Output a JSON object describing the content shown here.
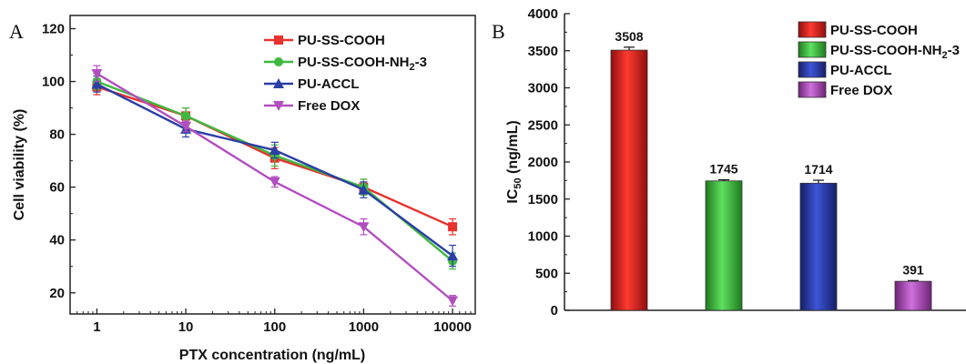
{
  "chart_data": [
    {
      "type": "line",
      "panel": "A",
      "x": [
        1,
        10,
        100,
        1000,
        10000
      ],
      "x_tick_labels": [
        "1",
        "10",
        "100",
        "1000",
        "10000"
      ],
      "xlabel": "PTX concentration (ng/mL)",
      "ylabel": "Cell viability (%)",
      "x_scale": "log",
      "xlim": [
        0.5,
        18000
      ],
      "ylim": [
        12,
        125
      ],
      "y_ticks": [
        20,
        40,
        60,
        80,
        100,
        120
      ],
      "legend_position": "top-right",
      "series": [
        {
          "name": "PU-SS-COOH",
          "color": "#e8322e",
          "marker": "square",
          "values": [
            98,
            87,
            71,
            60,
            45
          ],
          "errors": [
            3,
            3,
            4,
            3,
            3
          ]
        },
        {
          "name": "PU-SS-COOH-NH",
          "name_sub": "2",
          "name_suffix": "-3",
          "color": "#3fb83f",
          "marker": "circle",
          "values": [
            100,
            87,
            72,
            60,
            32
          ],
          "errors": [
            3,
            3,
            4,
            3,
            3
          ]
        },
        {
          "name": "PU-ACCL",
          "color": "#2b3ea5",
          "marker": "triangle-up",
          "values": [
            99,
            82,
            74,
            59,
            34
          ],
          "errors": [
            3,
            3,
            3,
            3,
            4
          ]
        },
        {
          "name": "Free DOX",
          "color": "#b24fbf",
          "marker": "triangle-down",
          "values": [
            103,
            83,
            62,
            45,
            17
          ],
          "errors": [
            3,
            2,
            2,
            3,
            2
          ]
        }
      ]
    },
    {
      "type": "bar",
      "panel": "B",
      "categories": [
        "PU-SS-COOH",
        "PU-SS-COOH-NH2-3",
        "PU-ACCL",
        "Free DOX"
      ],
      "values": [
        3508,
        1745,
        1714,
        391
      ],
      "errors": [
        40,
        15,
        40,
        10
      ],
      "data_labels": [
        "3508",
        "1745",
        "1714",
        "391"
      ],
      "ylabel_main": "IC",
      "ylabel_sub": "50",
      "ylabel_unit": " (ng/mL)",
      "ylim": [
        0,
        4000
      ],
      "y_ticks": [
        0,
        500,
        1000,
        1500,
        2000,
        2500,
        3000,
        3500,
        4000
      ],
      "legend_position": "top-right",
      "legend": [
        {
          "name": "PU-SS-COOH",
          "color": "#e8322e"
        },
        {
          "name": "PU-SS-COOH-NH",
          "name_sub": "2",
          "name_suffix": "-3",
          "color": "#3fb83f"
        },
        {
          "name": "PU-ACCL",
          "color": "#2b3ea5"
        },
        {
          "name": "Free DOX",
          "color": "#b24fbf"
        }
      ]
    }
  ],
  "panel_labels": {
    "a": "A",
    "b": "B"
  }
}
